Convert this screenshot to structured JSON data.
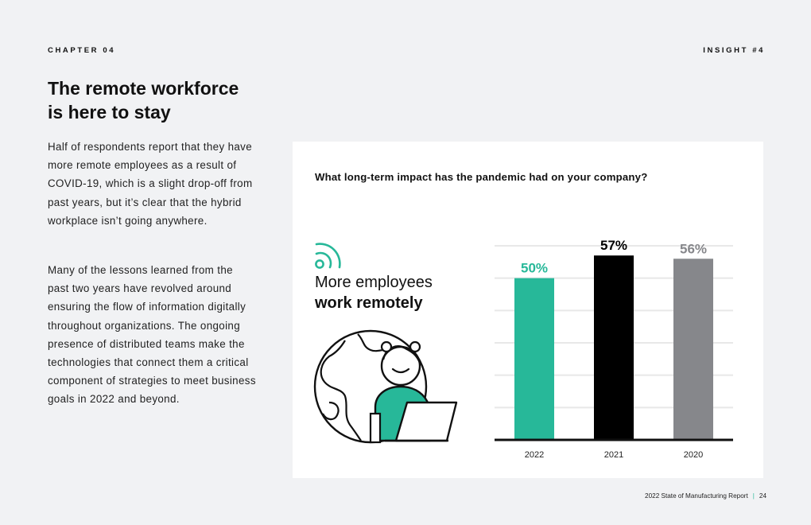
{
  "header": {
    "chapter": "CHAPTER 04",
    "insight": "INSIGHT #4"
  },
  "article": {
    "title_line1": "The remote workforce",
    "title_line2": "is here to stay",
    "paragraph1": "Half of respondents report that they have more remote employees as a result of COVID-19, which is a slight drop-off from past years, but it’s clear that the hybrid workplace isn’t going anywhere.",
    "paragraph2": "Many of the lessons learned from the past two years have revolved around ensuring the flow of information digitally throughout organizations. The ongoing presence of distributed teams make the technologies that connect them a critical component of strategies to meet business goals in 2022 and beyond."
  },
  "card": {
    "question": "What long-term impact has the pandemic had on your company?",
    "headline_regular": "More employees",
    "headline_bold": "work remotely",
    "wifi_icon": "wifi-icon",
    "illustration": "remote-worker-globe-illustration"
  },
  "chart_data": {
    "type": "bar",
    "title": "What long-term impact has the pandemic had on your company?",
    "categories": [
      "2022",
      "2021",
      "2020"
    ],
    "values": [
      50,
      57,
      56
    ],
    "value_labels": [
      "50%",
      "57%",
      "56%"
    ],
    "colors": [
      "#27b899",
      "#000000",
      "#86878b"
    ],
    "label_colors": [
      "#27b899",
      "#000000",
      "#86878b"
    ],
    "ylim": [
      0,
      60
    ],
    "grid": true,
    "xlabel": "",
    "ylabel": ""
  },
  "footer": {
    "report": "2022 State of Manufacturing Report",
    "separator": "|",
    "page": "24"
  },
  "colors": {
    "accent": "#27b899",
    "page_bg": "#f1f2f4"
  }
}
